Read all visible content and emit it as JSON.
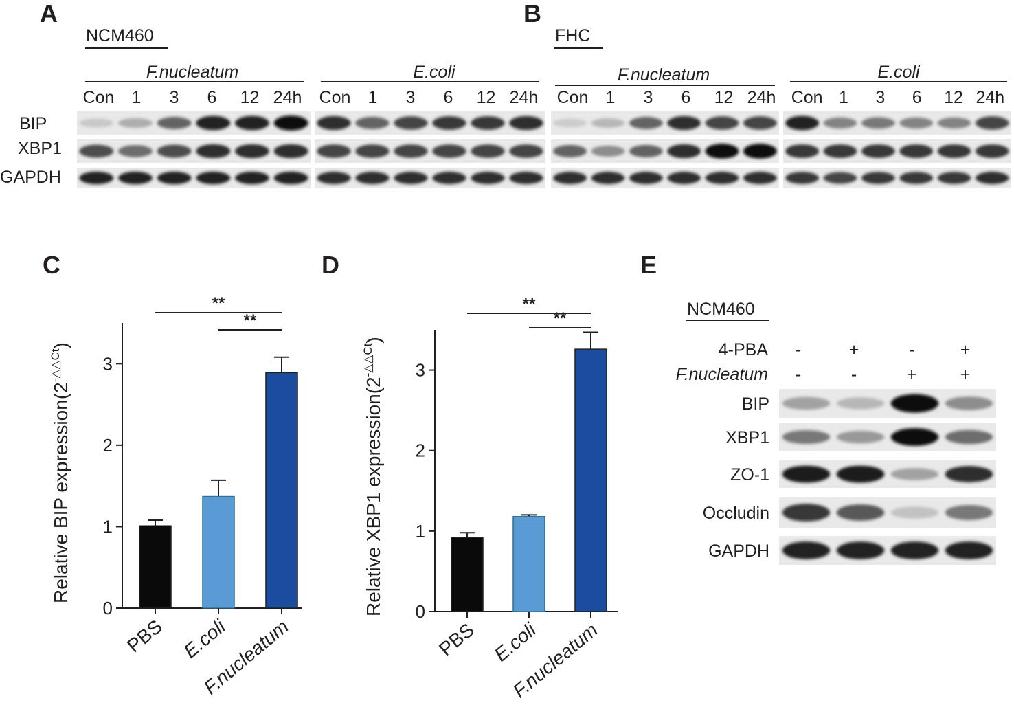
{
  "panels": {
    "A": "A",
    "B": "B",
    "C": "C",
    "D": "D",
    "E": "E"
  },
  "blot_A": {
    "cell_line": "NCM460",
    "groups": [
      "F.nucleatum",
      "E.coli"
    ],
    "lanes": [
      "Con",
      "1",
      "3",
      "6",
      "12",
      "24h"
    ],
    "proteins": [
      "BIP",
      "XBP1",
      "GAPDH"
    ],
    "intensity": {
      "F.nucleatum": {
        "BIP": [
          0.12,
          0.25,
          0.6,
          0.9,
          0.9,
          1.0
        ],
        "XBP1": [
          0.7,
          0.55,
          0.7,
          0.85,
          0.85,
          0.85
        ],
        "GAPDH": [
          0.9,
          0.9,
          0.9,
          0.9,
          0.9,
          0.9
        ]
      },
      "E.coli": {
        "BIP": [
          0.85,
          0.6,
          0.75,
          0.8,
          0.8,
          0.85
        ],
        "XBP1": [
          0.75,
          0.75,
          0.75,
          0.75,
          0.75,
          0.75
        ],
        "GAPDH": [
          0.85,
          0.85,
          0.85,
          0.85,
          0.85,
          0.85
        ]
      }
    }
  },
  "blot_B": {
    "cell_line": "FHC",
    "groups": [
      "F.nucleatum",
      "E.coli"
    ],
    "lanes": [
      "Con",
      "1",
      "3",
      "6",
      "12",
      "24h"
    ],
    "proteins": [
      "BIP",
      "XBP1",
      "GAPDH"
    ],
    "intensity": {
      "F.nucleatum": {
        "BIP": [
          0.1,
          0.2,
          0.6,
          0.85,
          0.75,
          0.75
        ],
        "XBP1": [
          0.6,
          0.4,
          0.6,
          0.85,
          1.0,
          1.0
        ],
        "GAPDH": [
          0.85,
          0.85,
          0.85,
          0.85,
          0.85,
          0.85
        ]
      },
      "E.coli": {
        "BIP": [
          0.9,
          0.45,
          0.5,
          0.45,
          0.45,
          0.75
        ],
        "XBP1": [
          0.8,
          0.8,
          0.8,
          0.8,
          0.8,
          0.8
        ],
        "GAPDH": [
          0.8,
          0.75,
          0.8,
          0.8,
          0.8,
          0.85
        ]
      }
    }
  },
  "chart_data": [
    {
      "type": "bar",
      "panel": "C",
      "ylabel_main": "Relative BIP expression(2",
      "ylabel_sup": "-△△Ct",
      "ylabel_end": ")",
      "categories": [
        "PBS",
        "E.coli",
        "F.nucleatum"
      ],
      "italic_categories": [
        false,
        true,
        true
      ],
      "values": [
        1.01,
        1.37,
        2.89
      ],
      "errors": [
        0.07,
        0.2,
        0.19
      ],
      "colors": [
        "#0a0a0a",
        "#5b9bd5",
        "#1b4c9e"
      ],
      "ylim": [
        0,
        3.5
      ],
      "yticks": [
        0,
        1,
        2,
        3
      ],
      "significance": [
        {
          "from": 0,
          "to": 2,
          "label": "**"
        },
        {
          "from": 1,
          "to": 2,
          "label": "**"
        }
      ]
    },
    {
      "type": "bar",
      "panel": "D",
      "ylabel_main": "Relative XBP1 expression(2",
      "ylabel_sup": "-△△Ct",
      "ylabel_end": ")",
      "categories": [
        "PBS",
        "E.coli",
        "F.nucleatum"
      ],
      "italic_categories": [
        false,
        true,
        true
      ],
      "values": [
        0.92,
        1.18,
        3.26
      ],
      "errors": [
        0.06,
        0.02,
        0.21
      ],
      "colors": [
        "#0a0a0a",
        "#5b9bd5",
        "#1b4c9e"
      ],
      "ylim": [
        0,
        3.5
      ],
      "yticks": [
        0,
        1,
        2,
        3
      ],
      "significance": [
        {
          "from": 0,
          "to": 2,
          "label": "**"
        },
        {
          "from": 1,
          "to": 2,
          "label": "**"
        }
      ]
    }
  ],
  "blot_E": {
    "cell_line": "NCM460",
    "treatments": [
      {
        "name": "4-PBA",
        "italic": false,
        "values": [
          "-",
          "+",
          "-",
          "+"
        ]
      },
      {
        "name": "F.nucleatum",
        "italic": true,
        "values": [
          "-",
          "-",
          "+",
          "+"
        ]
      }
    ],
    "proteins": [
      "BIP",
      "XBP1",
      "ZO-1",
      "Occludin",
      "GAPDH"
    ],
    "intensity": {
      "BIP": [
        0.3,
        0.2,
        1.0,
        0.4
      ],
      "XBP1": [
        0.5,
        0.35,
        1.0,
        0.55
      ],
      "ZO-1": [
        0.95,
        0.95,
        0.3,
        0.85
      ],
      "Occludin": [
        0.8,
        0.65,
        0.15,
        0.5
      ],
      "GAPDH": [
        0.9,
        0.9,
        0.9,
        0.9
      ]
    }
  }
}
